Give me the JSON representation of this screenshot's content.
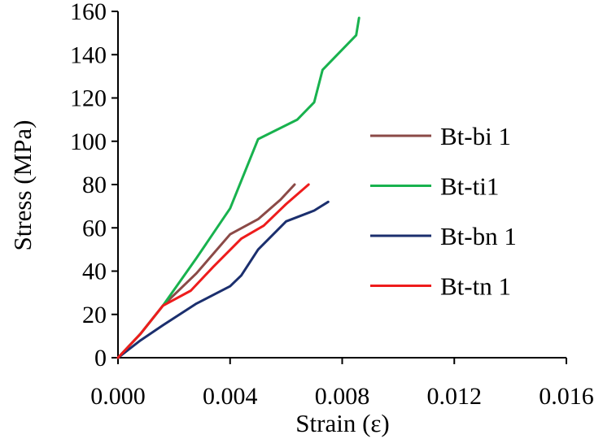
{
  "chart_data": {
    "type": "line",
    "title": "",
    "xlabel": "Strain (ε)",
    "ylabel": "Stress (MPa)",
    "xlim": [
      0,
      0.016
    ],
    "ylim": [
      0,
      160
    ],
    "grid": false,
    "legend_position": "right",
    "x_ticks": [
      0,
      0.004,
      0.008,
      0.012,
      0.016
    ],
    "x_tick_labels": [
      "0.000",
      "0.004",
      "0.008",
      "0.012",
      "0.016"
    ],
    "y_ticks": [
      0,
      20,
      40,
      60,
      80,
      100,
      120,
      140,
      160
    ],
    "y_tick_labels": [
      "0",
      "20",
      "40",
      "60",
      "80",
      "100",
      "120",
      "140",
      "160"
    ],
    "series": [
      {
        "name": "Bt-bi 1",
        "color": "#8b4a47",
        "x": [
          0,
          0.0008,
          0.0016,
          0.0028,
          0.004,
          0.005,
          0.0058,
          0.0063
        ],
        "y": [
          0,
          11,
          24,
          39,
          57,
          64,
          73,
          80
        ]
      },
      {
        "name": "Bt-ti1",
        "color": "#18b24e",
        "x": [
          0,
          0.0008,
          0.0016,
          0.0028,
          0.004,
          0.005,
          0.0064,
          0.007,
          0.0073,
          0.0085,
          0.0086
        ],
        "y": [
          0,
          11,
          24,
          46,
          69,
          101,
          110,
          118,
          133,
          149,
          157
        ]
      },
      {
        "name": "Bt-bn 1",
        "color": "#1b2f6e",
        "x": [
          0,
          0.0008,
          0.0016,
          0.0028,
          0.004,
          0.0044,
          0.005,
          0.006,
          0.007,
          0.0075
        ],
        "y": [
          0,
          8,
          15,
          25,
          33,
          38,
          50,
          63,
          68,
          72
        ]
      },
      {
        "name": "Bt-tn 1",
        "color": "#ee1c1c",
        "x": [
          0,
          0.0008,
          0.0016,
          0.0026,
          0.0034,
          0.0044,
          0.0052,
          0.006,
          0.0068
        ],
        "y": [
          0,
          11,
          24,
          31,
          42,
          55,
          61,
          71,
          80
        ]
      }
    ]
  }
}
